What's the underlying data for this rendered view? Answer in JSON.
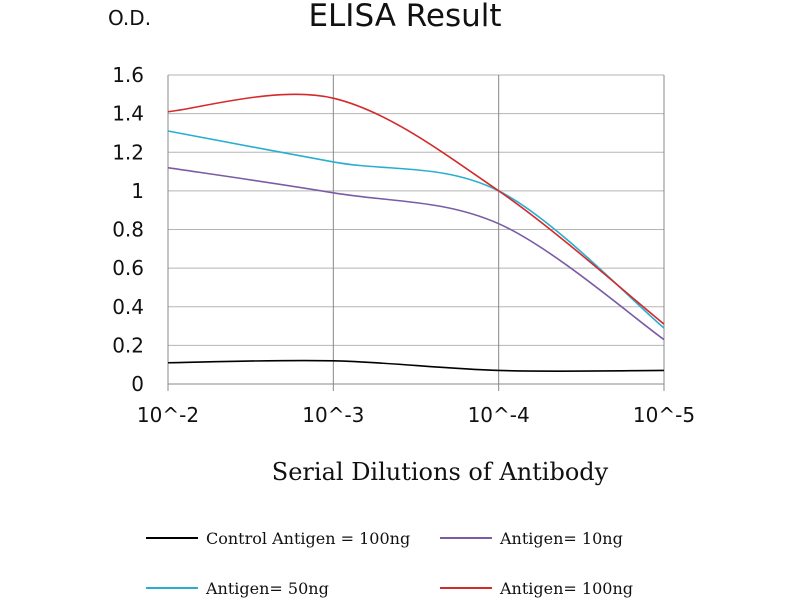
{
  "chart_data": {
    "type": "line",
    "title": "ELISA Result",
    "ylabel": "O.D.",
    "xlabel": "Serial Dilutions of Antibody",
    "categories": [
      "10^-2",
      "10^-3",
      "10^-4",
      "10^-5"
    ],
    "ylim": [
      0,
      1.6
    ],
    "yticks": [
      "0",
      "0.2",
      "0.4",
      "0.6",
      "0.8",
      "1",
      "1.2",
      "1.4",
      "1.6"
    ],
    "grid": true,
    "legend_position": "bottom",
    "series": [
      {
        "name": "Control Antigen = 100ng",
        "color": "#000000",
        "values": [
          0.11,
          0.12,
          0.07,
          0.07
        ]
      },
      {
        "name": "Antigen= 10ng",
        "color": "#7a5ca6",
        "values": [
          1.12,
          0.99,
          0.83,
          0.23
        ]
      },
      {
        "name": "Antigen= 50ng",
        "color": "#2aaed0",
        "values": [
          1.31,
          1.15,
          1.0,
          0.29
        ]
      },
      {
        "name": "Antigen= 100ng",
        "color": "#d42a2a",
        "values": [
          1.41,
          1.48,
          1.0,
          0.31
        ]
      }
    ]
  }
}
